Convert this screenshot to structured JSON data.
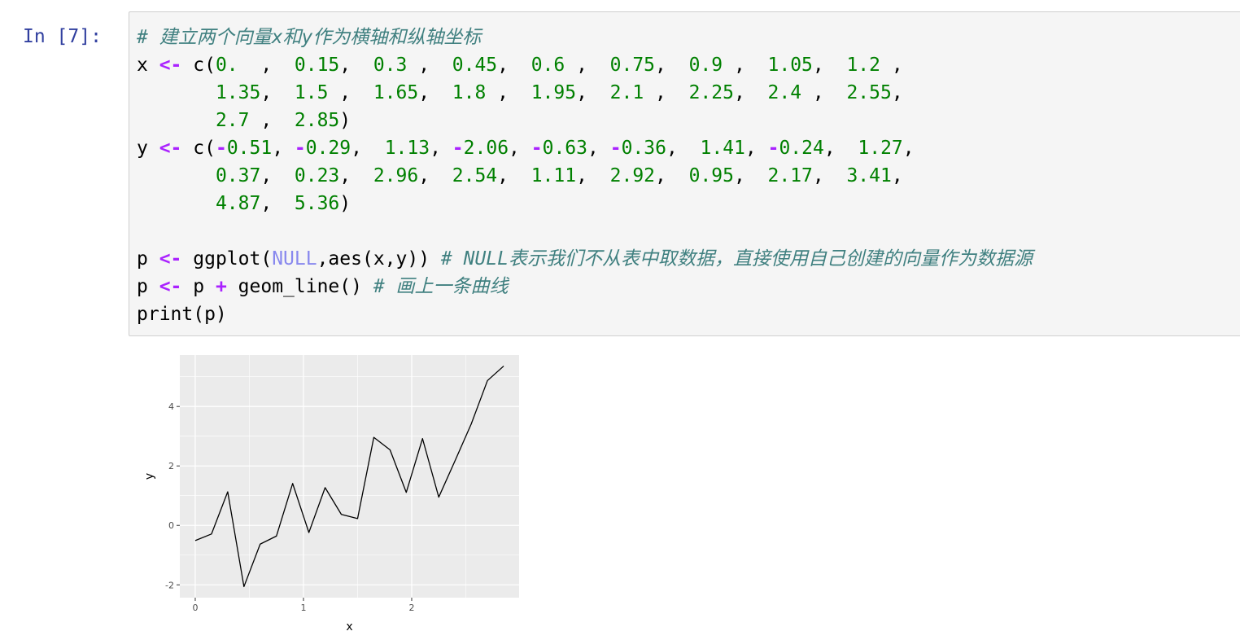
{
  "cell": {
    "prompt": "In [7]:",
    "code_lines": [
      [
        {
          "t": "comment",
          "v": "# 建立两个向量x和y作为横轴和纵轴坐标"
        }
      ],
      [
        {
          "t": "text",
          "v": "x "
        },
        {
          "t": "op",
          "v": "<-"
        },
        {
          "t": "text",
          "v": " c("
        },
        {
          "t": "num",
          "v": "0.  "
        },
        {
          "t": "text",
          "v": ",  "
        },
        {
          "t": "num",
          "v": "0.15"
        },
        {
          "t": "text",
          "v": ",  "
        },
        {
          "t": "num",
          "v": "0.3 "
        },
        {
          "t": "text",
          "v": ",  "
        },
        {
          "t": "num",
          "v": "0.45"
        },
        {
          "t": "text",
          "v": ",  "
        },
        {
          "t": "num",
          "v": "0.6 "
        },
        {
          "t": "text",
          "v": ",  "
        },
        {
          "t": "num",
          "v": "0.75"
        },
        {
          "t": "text",
          "v": ",  "
        },
        {
          "t": "num",
          "v": "0.9 "
        },
        {
          "t": "text",
          "v": ",  "
        },
        {
          "t": "num",
          "v": "1.05"
        },
        {
          "t": "text",
          "v": ",  "
        },
        {
          "t": "num",
          "v": "1.2 "
        },
        {
          "t": "text",
          "v": ","
        }
      ],
      [
        {
          "t": "text",
          "v": "       "
        },
        {
          "t": "num",
          "v": "1.35"
        },
        {
          "t": "text",
          "v": ",  "
        },
        {
          "t": "num",
          "v": "1.5 "
        },
        {
          "t": "text",
          "v": ",  "
        },
        {
          "t": "num",
          "v": "1.65"
        },
        {
          "t": "text",
          "v": ",  "
        },
        {
          "t": "num",
          "v": "1.8 "
        },
        {
          "t": "text",
          "v": ",  "
        },
        {
          "t": "num",
          "v": "1.95"
        },
        {
          "t": "text",
          "v": ",  "
        },
        {
          "t": "num",
          "v": "2.1 "
        },
        {
          "t": "text",
          "v": ",  "
        },
        {
          "t": "num",
          "v": "2.25"
        },
        {
          "t": "text",
          "v": ",  "
        },
        {
          "t": "num",
          "v": "2.4 "
        },
        {
          "t": "text",
          "v": ",  "
        },
        {
          "t": "num",
          "v": "2.55"
        },
        {
          "t": "text",
          "v": ","
        }
      ],
      [
        {
          "t": "text",
          "v": "       "
        },
        {
          "t": "num",
          "v": "2.7 "
        },
        {
          "t": "text",
          "v": ",  "
        },
        {
          "t": "num",
          "v": "2.85"
        },
        {
          "t": "text",
          "v": ")"
        }
      ],
      [
        {
          "t": "text",
          "v": "y "
        },
        {
          "t": "op",
          "v": "<-"
        },
        {
          "t": "text",
          "v": " c("
        },
        {
          "t": "op",
          "v": "-"
        },
        {
          "t": "num",
          "v": "0.51"
        },
        {
          "t": "text",
          "v": ", "
        },
        {
          "t": "op",
          "v": "-"
        },
        {
          "t": "num",
          "v": "0.29"
        },
        {
          "t": "text",
          "v": ",  "
        },
        {
          "t": "num",
          "v": "1.13"
        },
        {
          "t": "text",
          "v": ", "
        },
        {
          "t": "op",
          "v": "-"
        },
        {
          "t": "num",
          "v": "2.06"
        },
        {
          "t": "text",
          "v": ", "
        },
        {
          "t": "op",
          "v": "-"
        },
        {
          "t": "num",
          "v": "0.63"
        },
        {
          "t": "text",
          "v": ", "
        },
        {
          "t": "op",
          "v": "-"
        },
        {
          "t": "num",
          "v": "0.36"
        },
        {
          "t": "text",
          "v": ",  "
        },
        {
          "t": "num",
          "v": "1.41"
        },
        {
          "t": "text",
          "v": ", "
        },
        {
          "t": "op",
          "v": "-"
        },
        {
          "t": "num",
          "v": "0.24"
        },
        {
          "t": "text",
          "v": ",  "
        },
        {
          "t": "num",
          "v": "1.27"
        },
        {
          "t": "text",
          "v": ","
        }
      ],
      [
        {
          "t": "text",
          "v": "       "
        },
        {
          "t": "num",
          "v": "0.37"
        },
        {
          "t": "text",
          "v": ",  "
        },
        {
          "t": "num",
          "v": "0.23"
        },
        {
          "t": "text",
          "v": ",  "
        },
        {
          "t": "num",
          "v": "2.96"
        },
        {
          "t": "text",
          "v": ",  "
        },
        {
          "t": "num",
          "v": "2.54"
        },
        {
          "t": "text",
          "v": ",  "
        },
        {
          "t": "num",
          "v": "1.11"
        },
        {
          "t": "text",
          "v": ",  "
        },
        {
          "t": "num",
          "v": "2.92"
        },
        {
          "t": "text",
          "v": ",  "
        },
        {
          "t": "num",
          "v": "0.95"
        },
        {
          "t": "text",
          "v": ",  "
        },
        {
          "t": "num",
          "v": "2.17"
        },
        {
          "t": "text",
          "v": ",  "
        },
        {
          "t": "num",
          "v": "3.41"
        },
        {
          "t": "text",
          "v": ","
        }
      ],
      [
        {
          "t": "text",
          "v": "       "
        },
        {
          "t": "num",
          "v": "4.87"
        },
        {
          "t": "text",
          "v": ",  "
        },
        {
          "t": "num",
          "v": "5.36"
        },
        {
          "t": "text",
          "v": ")"
        }
      ],
      [],
      [
        {
          "t": "text",
          "v": "p "
        },
        {
          "t": "op",
          "v": "<-"
        },
        {
          "t": "text",
          "v": " ggplot("
        },
        {
          "t": "const",
          "v": "NULL"
        },
        {
          "t": "text",
          "v": ",aes(x,y)) "
        },
        {
          "t": "comment",
          "v": "# NULL表示我们不从表中取数据，直接使用自己创建的向量作为数据源"
        }
      ],
      [
        {
          "t": "text",
          "v": "p "
        },
        {
          "t": "op",
          "v": "<-"
        },
        {
          "t": "text",
          "v": " p "
        },
        {
          "t": "op",
          "v": "+"
        },
        {
          "t": "text",
          "v": " geom_line() "
        },
        {
          "t": "comment",
          "v": "# 画上一条曲线"
        }
      ],
      [
        {
          "t": "text",
          "v": "print(p)"
        }
      ]
    ]
  },
  "chart_data": {
    "type": "line",
    "x": [
      0,
      0.15,
      0.3,
      0.45,
      0.6,
      0.75,
      0.9,
      1.05,
      1.2,
      1.35,
      1.5,
      1.65,
      1.8,
      1.95,
      2.1,
      2.25,
      2.4,
      2.55,
      2.7,
      2.85
    ],
    "y": [
      -0.51,
      -0.29,
      1.13,
      -2.06,
      -0.63,
      -0.36,
      1.41,
      -0.24,
      1.27,
      0.37,
      0.23,
      2.96,
      2.54,
      1.11,
      2.92,
      0.95,
      2.17,
      3.41,
      4.87,
      5.36
    ],
    "xlabel": "x",
    "ylabel": "y",
    "xlim": [
      -0.1425,
      2.9925
    ],
    "ylim": [
      -2.431,
      5.731
    ],
    "x_ticks": [
      0,
      1,
      2
    ],
    "x_tick_labels": [
      "0",
      "1",
      "2"
    ],
    "y_ticks": [
      -2,
      0,
      2,
      4
    ],
    "y_tick_labels": [
      "-2",
      "0",
      "2",
      "4"
    ],
    "grid": true,
    "panel_background": "#ebebeb",
    "grid_color": "#ffffff",
    "line_color": "#000000"
  }
}
